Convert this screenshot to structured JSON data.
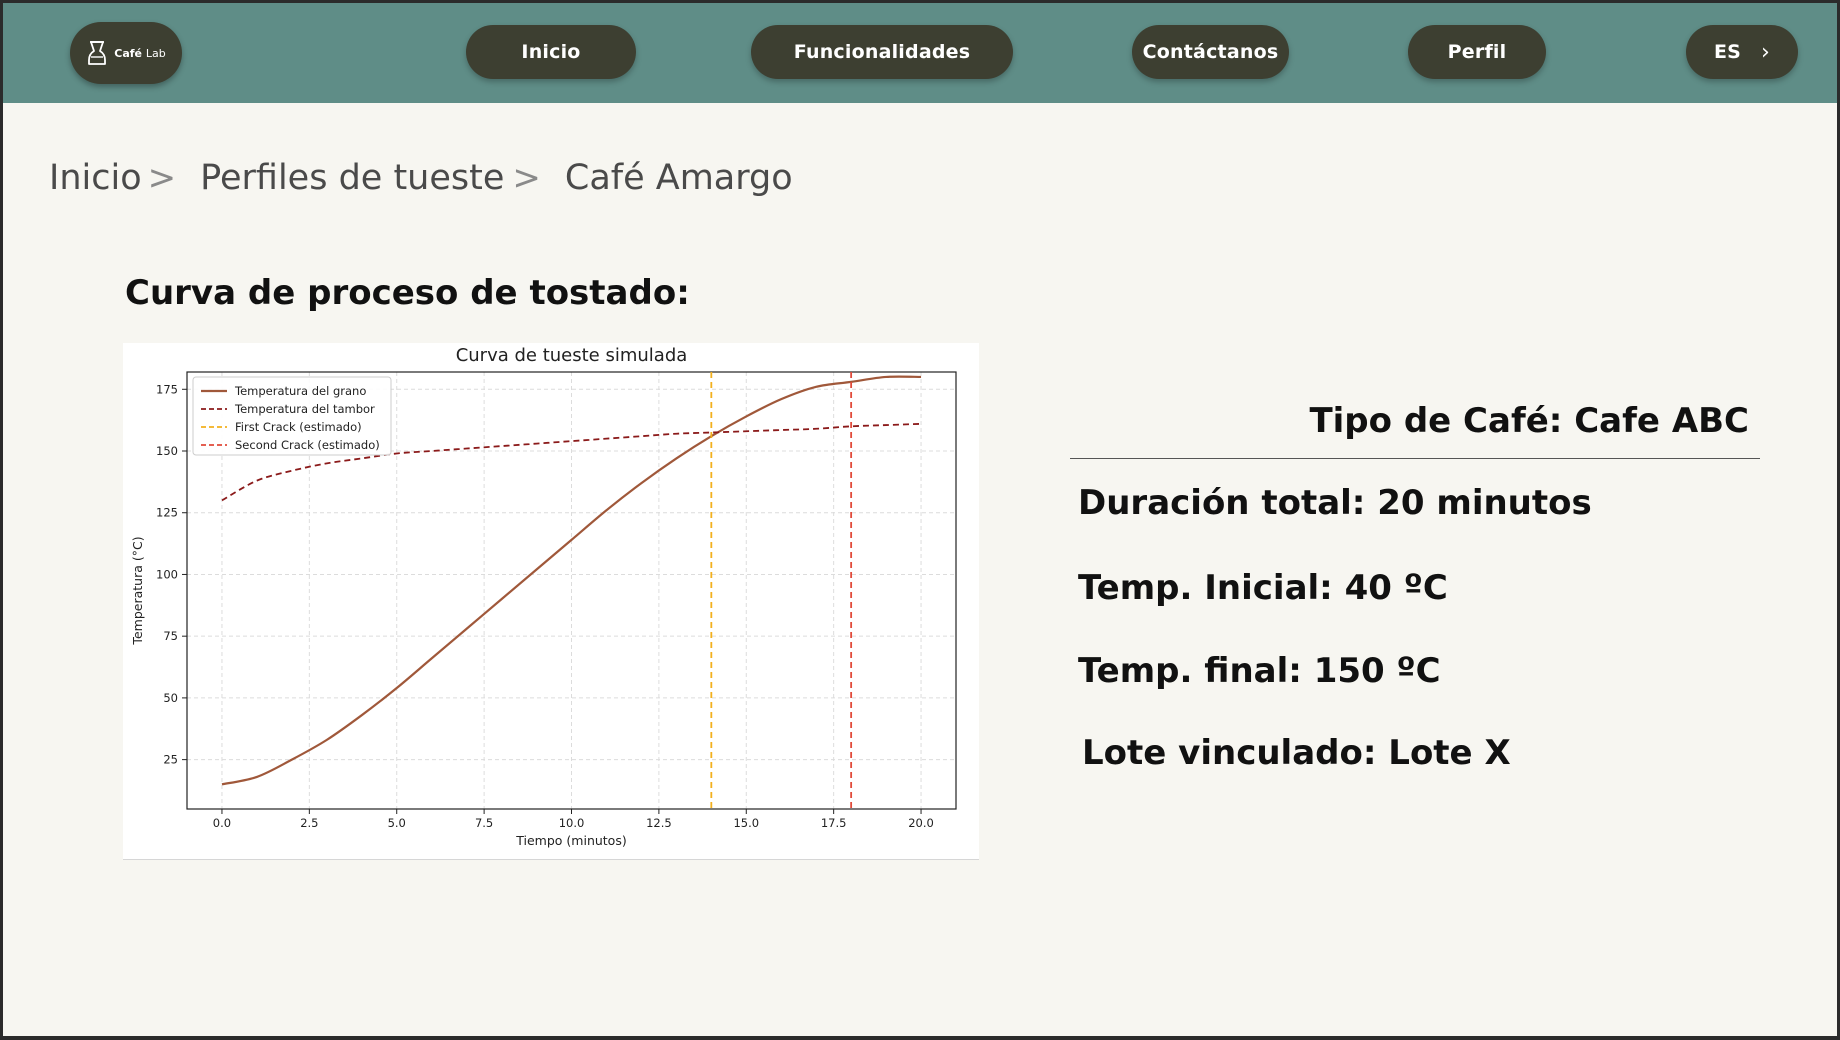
{
  "nav": {
    "logo_label": "Café",
    "logo_label_light": "Lab",
    "items": [
      {
        "label": "Inicio"
      },
      {
        "label": "Funcionalidades"
      },
      {
        "label": "Contáctanos"
      },
      {
        "label": "Perfil"
      }
    ],
    "language": "ES"
  },
  "breadcrumb": [
    "Inicio",
    "Perfiles de tueste",
    "Café Amargo"
  ],
  "section_title": "Curva de proceso de tostado:",
  "info": {
    "type": "Tipo de Café: Cafe ABC",
    "duration": "Duración total: 20 minutos",
    "temp_initial": "Temp. Inicial: 40 ºC",
    "temp_final": "Temp. final: 150 ºC",
    "batch": "Lote vinculado: Lote X"
  },
  "colors": {
    "nav_bg": "#5f8d87",
    "pill_bg": "#3d3f31",
    "grain": "#a0583a",
    "drum": "#8b1a1a",
    "first_crack": "#f2b01e",
    "second_crack": "#e04a3a"
  },
  "chart_data": {
    "type": "line",
    "title": "Curva de tueste simulada",
    "xlabel": "Tiempo (minutos)",
    "ylabel": "Temperatura (°C)",
    "xlim": [
      -1,
      21
    ],
    "ylim": [
      5,
      182
    ],
    "xticks": [
      "0.0",
      "2.5",
      "5.0",
      "7.5",
      "10.0",
      "12.5",
      "15.0",
      "17.5",
      "20.0"
    ],
    "yticks": [
      "25",
      "50",
      "75",
      "100",
      "125",
      "150",
      "175"
    ],
    "grid": true,
    "legend": "top-left",
    "series": [
      {
        "name": "Temperatura del grano",
        "style": "solid",
        "x": [
          0,
          1,
          2,
          3,
          4,
          5,
          6,
          7,
          8,
          9,
          10,
          11,
          12,
          13,
          14,
          15,
          16,
          17,
          18,
          19,
          20
        ],
        "y": [
          15,
          18,
          25,
          33,
          43,
          54,
          66,
          78,
          90,
          102,
          114,
          126,
          137,
          147,
          156,
          164,
          171,
          176,
          178,
          180,
          180
        ]
      },
      {
        "name": "Temperatura del tambor",
        "style": "dashed",
        "x": [
          0,
          1,
          2,
          3,
          4,
          5,
          6,
          7,
          8,
          9,
          10,
          11,
          12,
          13,
          14,
          15,
          16,
          17,
          18,
          19,
          20
        ],
        "y": [
          130,
          138,
          142,
          145,
          147,
          149,
          150,
          151,
          152,
          153,
          154,
          155,
          156,
          157,
          157.5,
          158,
          158.5,
          159,
          160,
          160.5,
          161
        ]
      },
      {
        "name": "First Crack (estimado)",
        "style": "vline",
        "x_value": 14
      },
      {
        "name": "Second Crack (estimado)",
        "style": "vline",
        "x_value": 18
      }
    ]
  }
}
